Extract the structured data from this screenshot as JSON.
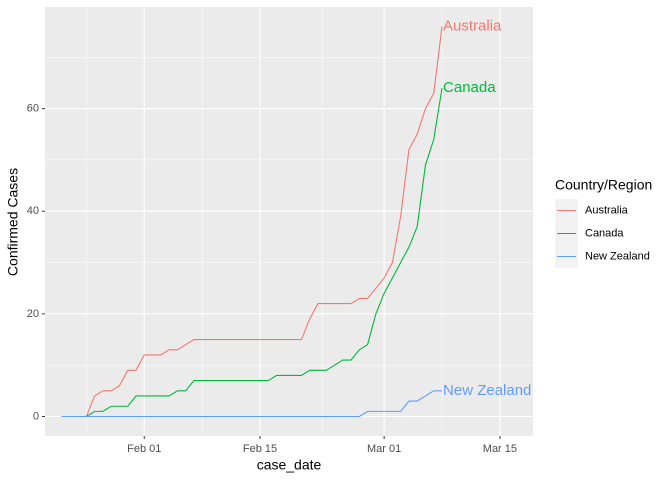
{
  "chart_data": {
    "type": "line",
    "x_label": "case_date",
    "y_label": "Confirmed Cases",
    "legend_title": "Country/Region",
    "legend_position": "right",
    "grid": true,
    "x": [
      "Jan 22",
      "Jan 23",
      "Jan 24",
      "Jan 25",
      "Jan 26",
      "Jan 27",
      "Jan 28",
      "Jan 29",
      "Jan 30",
      "Jan 31",
      "Feb 01",
      "Feb 02",
      "Feb 03",
      "Feb 04",
      "Feb 05",
      "Feb 06",
      "Feb 07",
      "Feb 08",
      "Feb 09",
      "Feb 10",
      "Feb 11",
      "Feb 12",
      "Feb 13",
      "Feb 14",
      "Feb 15",
      "Feb 16",
      "Feb 17",
      "Feb 18",
      "Feb 19",
      "Feb 20",
      "Feb 21",
      "Feb 22",
      "Feb 23",
      "Feb 24",
      "Feb 25",
      "Feb 26",
      "Feb 27",
      "Feb 28",
      "Feb 29",
      "Mar 01",
      "Mar 02",
      "Mar 03",
      "Mar 04",
      "Mar 05",
      "Mar 06",
      "Mar 07",
      "Mar 08"
    ],
    "xlim": [
      "Jan 20",
      "Mar 19"
    ],
    "xticks": [
      "Feb 01",
      "Feb 15",
      "Mar 01",
      "Mar 15"
    ],
    "ylim": [
      -3.8,
      79.8
    ],
    "yticks": [
      0,
      20,
      40,
      60
    ],
    "series": [
      {
        "name": "Australia",
        "color": "#F8766D",
        "values": [
          0,
          0,
          0,
          0,
          4,
          5,
          5,
          6,
          9,
          9,
          12,
          12,
          12,
          13,
          13,
          14,
          15,
          15,
          15,
          15,
          15,
          15,
          15,
          15,
          15,
          15,
          15,
          15,
          15,
          15,
          19,
          22,
          22,
          22,
          22,
          22,
          23,
          23,
          25,
          27,
          30,
          39,
          52,
          55,
          60,
          63,
          76
        ]
      },
      {
        "name": "Canada",
        "color": "#00BA38",
        "values": [
          0,
          0,
          0,
          0,
          1,
          1,
          2,
          2,
          2,
          4,
          4,
          4,
          4,
          4,
          5,
          5,
          7,
          7,
          7,
          7,
          7,
          7,
          7,
          7,
          7,
          7,
          8,
          8,
          8,
          8,
          9,
          9,
          9,
          10,
          11,
          11,
          13,
          14,
          20,
          24,
          27,
          30,
          33,
          37,
          49,
          54,
          64
        ]
      },
      {
        "name": "New Zealand",
        "color": "#619CFF",
        "values": [
          0,
          0,
          0,
          0,
          0,
          0,
          0,
          0,
          0,
          0,
          0,
          0,
          0,
          0,
          0,
          0,
          0,
          0,
          0,
          0,
          0,
          0,
          0,
          0,
          0,
          0,
          0,
          0,
          0,
          0,
          0,
          0,
          0,
          0,
          0,
          0,
          0,
          1,
          1,
          1,
          1,
          1,
          3,
          3,
          4,
          5,
          5
        ]
      }
    ]
  }
}
